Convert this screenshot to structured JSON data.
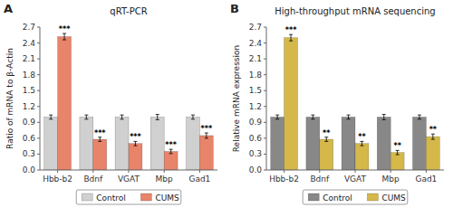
{
  "chart_data": [
    {
      "type": "bar",
      "panel_label": "A",
      "title": "qRT-PCR",
      "ylabel": "Ratio of mRNA to β-Actin",
      "categories": [
        "Hbb-b2",
        "Bdnf",
        "VGAT",
        "Mbp",
        "Gad1"
      ],
      "series": [
        {
          "name": "Control",
          "color": "#d0d0d0",
          "values": [
            1.0,
            1.0,
            1.0,
            1.0,
            1.0
          ],
          "errors": [
            0.04,
            0.04,
            0.04,
            0.05,
            0.04
          ]
        },
        {
          "name": "CUMS",
          "color": "#e8846a",
          "values": [
            2.52,
            0.58,
            0.5,
            0.35,
            0.65
          ],
          "errors": [
            0.06,
            0.04,
            0.04,
            0.04,
            0.05
          ],
          "annotations": [
            "***",
            "***",
            "***",
            "***",
            "***"
          ]
        }
      ],
      "ylim": [
        0.0,
        2.7
      ],
      "yticks": [
        {
          "value": 0.0,
          "label": "0.0"
        },
        0.3,
        0.6,
        0.9,
        1.2,
        1.5,
        1.8,
        2.1,
        2.4,
        2.7
      ],
      "legend": "bottom"
    },
    {
      "type": "bar",
      "panel_label": "B",
      "title": "High-throughput mRNA sequencing",
      "ylabel": "Relative mRNA expression",
      "categories": [
        "Hbb-b2",
        "Bdnf",
        "VGAT",
        "Mbp",
        "Gad1"
      ],
      "series": [
        {
          "name": "Control",
          "color": "#888888",
          "values": [
            1.0,
            1.0,
            1.0,
            1.0,
            1.0
          ],
          "errors": [
            0.04,
            0.04,
            0.04,
            0.05,
            0.04
          ]
        },
        {
          "name": "CUMS",
          "color": "#d4b84a",
          "values": [
            2.5,
            0.58,
            0.5,
            0.33,
            0.63
          ],
          "errors": [
            0.06,
            0.04,
            0.04,
            0.04,
            0.05
          ],
          "annotations": [
            "***",
            "**",
            "**",
            "**",
            "**"
          ]
        }
      ],
      "ylim": [
        0.0,
        2.7
      ],
      "yticks": [
        {
          "value": 0.0,
          "label": "0.0"
        },
        0.3,
        0.6,
        0.9,
        1.2,
        1.5,
        1.8,
        2.1,
        2.4,
        2.7
      ],
      "legend": "bottom"
    }
  ]
}
